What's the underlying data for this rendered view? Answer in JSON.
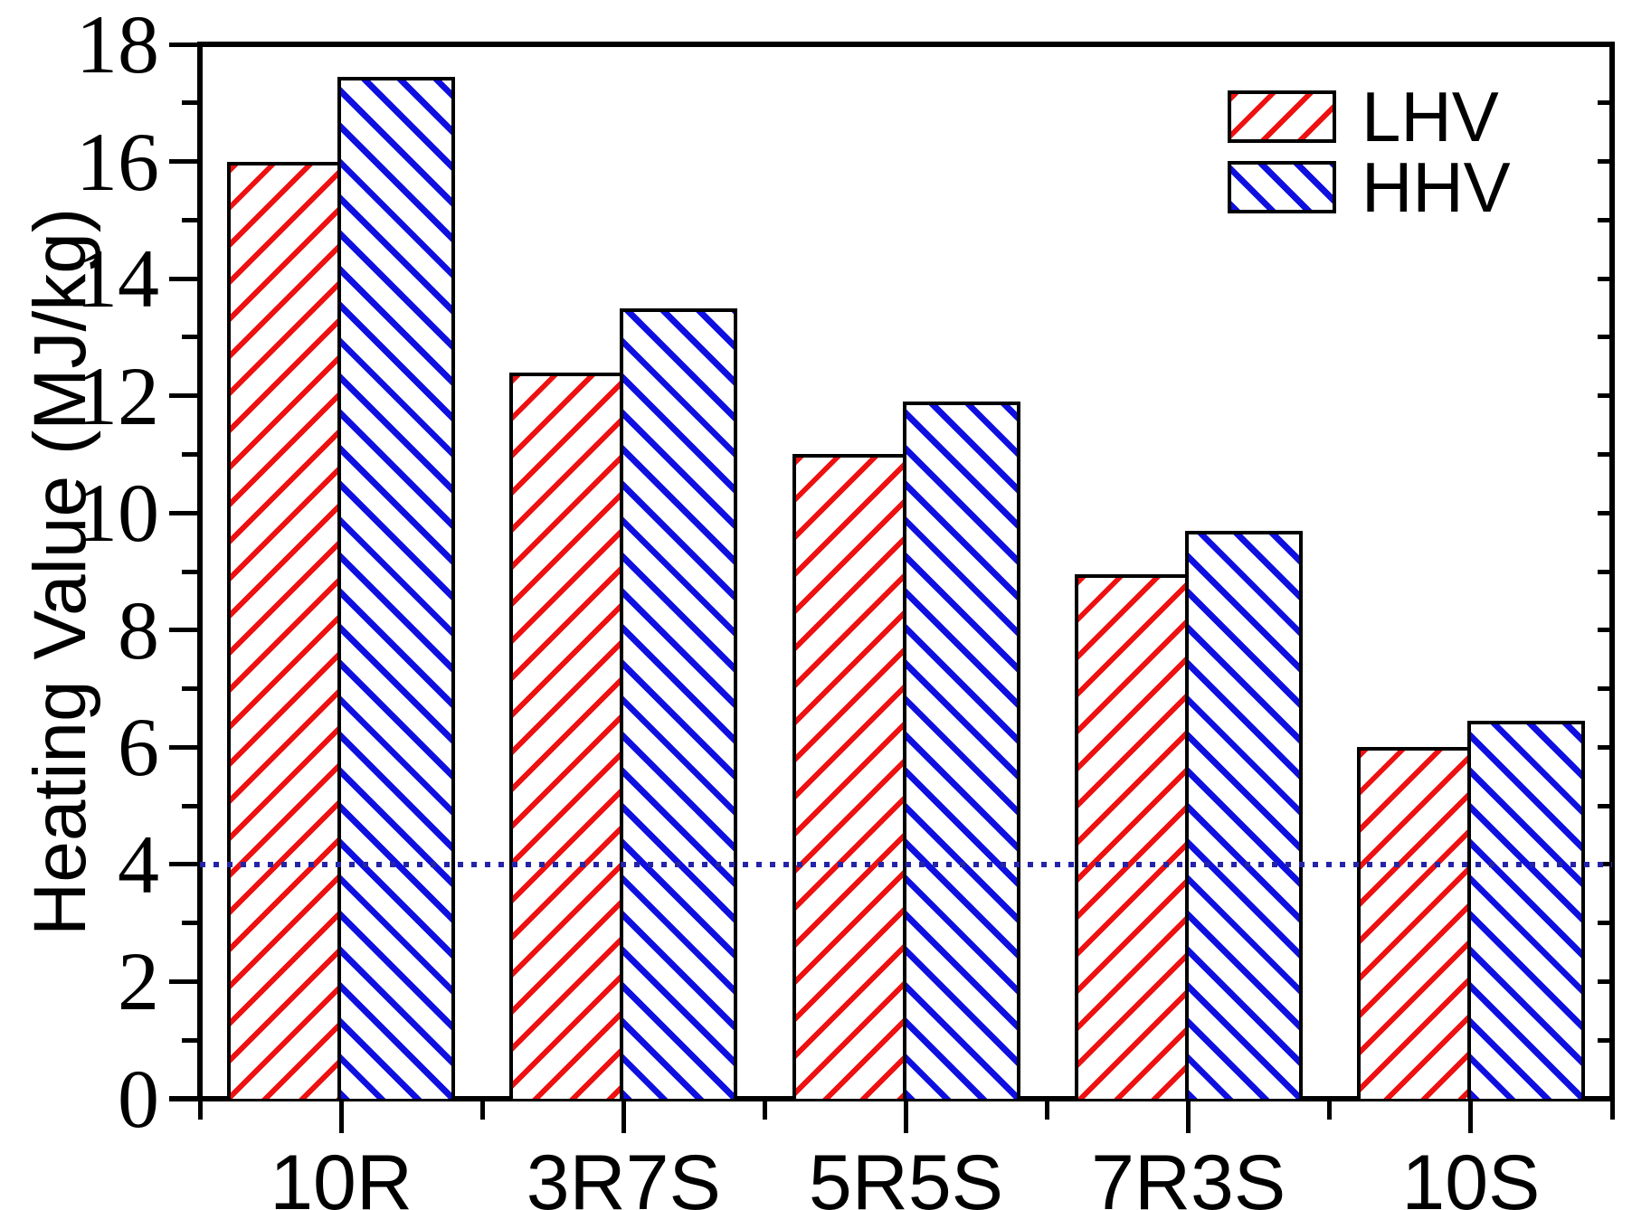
{
  "chart_data": {
    "type": "bar",
    "title": "",
    "xlabel": "",
    "ylabel": "Heating Value (MJ/kg)",
    "categories": [
      "10R",
      "3R7S",
      "5R5S",
      "7R3S",
      "10S"
    ],
    "series": [
      {
        "name": "LHV",
        "color": "#ee1111",
        "hatch": "forward-diagonal",
        "values": [
          16.0,
          12.4,
          11.0,
          8.95,
          6.0
        ]
      },
      {
        "name": "HHV",
        "color": "#0f0fe0",
        "hatch": "backward-diagonal",
        "values": [
          17.45,
          13.5,
          11.9,
          9.7,
          6.45
        ]
      }
    ],
    "ylim": [
      0,
      18
    ],
    "ytick_labels": [
      "0",
      "2",
      "4",
      "6",
      "8",
      "10",
      "12",
      "14",
      "16",
      "18"
    ],
    "ytick_step": 2,
    "minor_tick_step": 1,
    "reference_line": {
      "y": 4,
      "style": "dotted",
      "color": "#2424a9"
    },
    "legend": {
      "position": "top-right",
      "entries": [
        "LHV",
        "HHV"
      ]
    },
    "grid": false,
    "bar_edge_color": "#000000",
    "background_color": "#ffffff"
  }
}
